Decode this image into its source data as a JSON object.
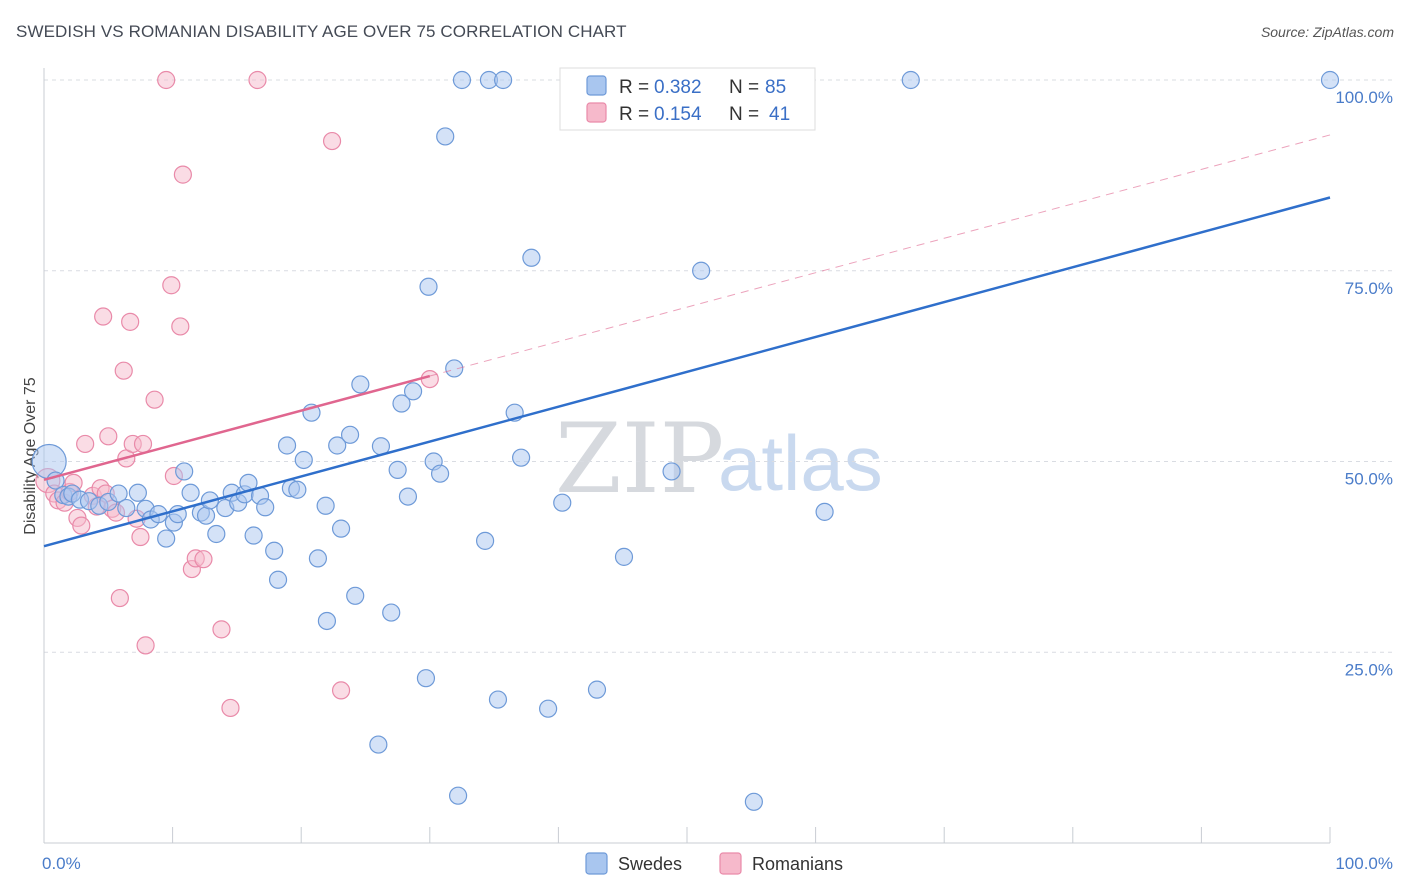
{
  "header": {
    "title": "SWEDISH VS ROMANIAN DISABILITY AGE OVER 75 CORRELATION CHART",
    "source": "Source: ZipAtlas.com"
  },
  "watermark": {
    "zip": "ZIP",
    "atlas": "atlas"
  },
  "legend": {
    "rows": [
      {
        "r_label": "R = ",
        "r_value": "0.382",
        "n_label": "N = ",
        "n_value": "85"
      },
      {
        "r_label": "R = ",
        "r_value": "0.154",
        "n_label": "N = ",
        "n_value": "41"
      }
    ]
  },
  "bottom_legend": {
    "items": [
      {
        "label": "Swedes"
      },
      {
        "label": "Romanians"
      }
    ]
  },
  "colors": {
    "swedes_fill": "#a9c6ef",
    "swedes_stroke": "#6e9ad8",
    "swedes_line": "#2f6fcb",
    "romanians_fill": "#f6b9cb",
    "romanians_stroke": "#e98aa9",
    "romanians_line": "#e0668f",
    "grid": "#d9dce2",
    "tick_label": "#4a7cc9"
  },
  "chart_data": {
    "type": "scatter",
    "title": "SWEDISH VS ROMANIAN DISABILITY AGE OVER 75 CORRELATION CHART",
    "xlabel": "",
    "ylabel": "Disability Age Over 75",
    "xlim": [
      0,
      100
    ],
    "ylim": [
      0,
      100
    ],
    "x_tick_labels": [
      "0.0%",
      "100.0%"
    ],
    "y_ticks": [
      25,
      50,
      75,
      100
    ],
    "y_tick_labels": [
      "25.0%",
      "50.0%",
      "75.0%",
      "100.0%"
    ],
    "grid": true,
    "legend_position": "top-center",
    "series": [
      {
        "name": "Swedes",
        "r": 0.382,
        "n": 85,
        "trend": {
          "x0": 0,
          "y0": 38.9,
          "x1": 100,
          "y1": 84.6,
          "style": "solid"
        },
        "points": [
          [
            0.4,
            50.0,
            3
          ],
          [
            0.9,
            47.5,
            1
          ],
          [
            1.5,
            45.6,
            1
          ],
          [
            1.9,
            45.4,
            1
          ],
          [
            2.2,
            45.8,
            1
          ],
          [
            2.8,
            45.0,
            1
          ],
          [
            3.5,
            44.8,
            1
          ],
          [
            4.3,
            44.2,
            1
          ],
          [
            5.0,
            44.7,
            1
          ],
          [
            5.8,
            45.8,
            1
          ],
          [
            6.4,
            43.9,
            1
          ],
          [
            7.3,
            45.9,
            1
          ],
          [
            7.9,
            43.8,
            1
          ],
          [
            8.3,
            42.4,
            1
          ],
          [
            8.9,
            43.1,
            1
          ],
          [
            9.5,
            39.9,
            1
          ],
          [
            10.1,
            42.0,
            1
          ],
          [
            10.4,
            43.1,
            1
          ],
          [
            10.9,
            48.7,
            1
          ],
          [
            11.4,
            45.9,
            1
          ],
          [
            12.2,
            43.3,
            1
          ],
          [
            12.6,
            42.9,
            1
          ],
          [
            12.9,
            44.9,
            1
          ],
          [
            13.4,
            40.5,
            1
          ],
          [
            14.1,
            43.9,
            1
          ],
          [
            14.6,
            45.9,
            1
          ],
          [
            15.1,
            44.6,
            1
          ],
          [
            15.6,
            45.7,
            1
          ],
          [
            15.9,
            47.2,
            1
          ],
          [
            16.3,
            40.3,
            1
          ],
          [
            16.8,
            45.5,
            1
          ],
          [
            17.2,
            44.0,
            1
          ],
          [
            17.9,
            38.3,
            1
          ],
          [
            18.2,
            34.5,
            1
          ],
          [
            18.9,
            52.1,
            1
          ],
          [
            19.2,
            46.5,
            1
          ],
          [
            19.7,
            46.3,
            1
          ],
          [
            20.2,
            50.2,
            1
          ],
          [
            20.8,
            56.4,
            1
          ],
          [
            21.3,
            37.3,
            1
          ],
          [
            21.9,
            44.2,
            1
          ],
          [
            22.0,
            29.1,
            1
          ],
          [
            22.8,
            52.1,
            1
          ],
          [
            23.1,
            41.2,
            1
          ],
          [
            23.8,
            53.5,
            1
          ],
          [
            24.2,
            32.4,
            1
          ],
          [
            24.6,
            60.1,
            1
          ],
          [
            26.0,
            12.9,
            1
          ],
          [
            26.2,
            52.0,
            1
          ],
          [
            27.0,
            30.2,
            1
          ],
          [
            27.5,
            48.9,
            1
          ],
          [
            27.8,
            57.6,
            1
          ],
          [
            28.3,
            45.4,
            1
          ],
          [
            28.7,
            59.2,
            1
          ],
          [
            29.7,
            21.6,
            1
          ],
          [
            29.9,
            72.9,
            1
          ],
          [
            30.3,
            50.0,
            1
          ],
          [
            30.8,
            48.4,
            1
          ],
          [
            31.2,
            92.6,
            1
          ],
          [
            31.9,
            62.2,
            1
          ],
          [
            32.2,
            6.2,
            1
          ],
          [
            32.5,
            100.0,
            1
          ],
          [
            34.3,
            39.6,
            1
          ],
          [
            34.6,
            100.0,
            1
          ],
          [
            35.3,
            18.8,
            1
          ],
          [
            35.7,
            100.0,
            1
          ],
          [
            36.6,
            56.4,
            1
          ],
          [
            37.1,
            50.5,
            1
          ],
          [
            37.9,
            76.7,
            1
          ],
          [
            39.2,
            17.6,
            1
          ],
          [
            40.3,
            44.6,
            1
          ],
          [
            43.0,
            20.1,
            1
          ],
          [
            45.1,
            37.5,
            1
          ],
          [
            48.8,
            48.7,
            1
          ],
          [
            50.9,
            100.0,
            1
          ],
          [
            51.1,
            75.0,
            1
          ],
          [
            55.2,
            5.4,
            1
          ],
          [
            60.7,
            43.4,
            1
          ],
          [
            67.4,
            100.0,
            1
          ],
          [
            100.0,
            100.0,
            1
          ]
        ]
      },
      {
        "name": "Romanians",
        "r": 0.154,
        "n": 41,
        "trend": {
          "x0": 0,
          "y0": 47.6,
          "x1": 30,
          "y1": 61.2,
          "style": "solid"
        },
        "trend_extension": {
          "x0": 30,
          "y0": 61.2,
          "x1": 100,
          "y1": 92.8,
          "style": "dashed"
        },
        "points": [
          [
            0.3,
            47.5,
            2
          ],
          [
            0.8,
            45.8,
            1
          ],
          [
            1.1,
            44.9,
            1
          ],
          [
            1.6,
            44.6,
            1
          ],
          [
            2.0,
            46.0,
            1
          ],
          [
            2.3,
            47.2,
            1
          ],
          [
            2.6,
            42.6,
            1
          ],
          [
            2.9,
            41.6,
            1
          ],
          [
            3.2,
            52.3,
            1
          ],
          [
            3.8,
            45.5,
            1
          ],
          [
            4.1,
            44.1,
            1
          ],
          [
            4.4,
            46.5,
            1
          ],
          [
            4.6,
            69.0,
            1
          ],
          [
            4.8,
            45.8,
            1
          ],
          [
            5.0,
            53.3,
            1
          ],
          [
            5.3,
            43.8,
            1
          ],
          [
            5.6,
            43.3,
            1
          ],
          [
            5.9,
            32.1,
            1
          ],
          [
            6.2,
            61.9,
            1
          ],
          [
            6.4,
            50.4,
            1
          ],
          [
            6.7,
            68.3,
            1
          ],
          [
            6.9,
            52.3,
            1
          ],
          [
            7.2,
            42.5,
            1
          ],
          [
            7.5,
            40.1,
            1
          ],
          [
            7.7,
            52.3,
            1
          ],
          [
            7.9,
            25.9,
            1
          ],
          [
            8.6,
            58.1,
            1
          ],
          [
            9.5,
            100.0,
            1
          ],
          [
            9.9,
            73.1,
            1
          ],
          [
            10.1,
            48.1,
            1
          ],
          [
            10.6,
            67.7,
            1
          ],
          [
            10.8,
            87.6,
            1
          ],
          [
            11.5,
            35.9,
            1
          ],
          [
            11.8,
            37.3,
            1
          ],
          [
            12.4,
            37.2,
            1
          ],
          [
            13.8,
            28.0,
            1
          ],
          [
            14.5,
            17.7,
            1
          ],
          [
            16.6,
            100.0,
            1
          ],
          [
            22.4,
            92.0,
            1
          ],
          [
            23.1,
            20.0,
            1
          ],
          [
            30.0,
            60.8,
            1
          ]
        ]
      }
    ]
  }
}
